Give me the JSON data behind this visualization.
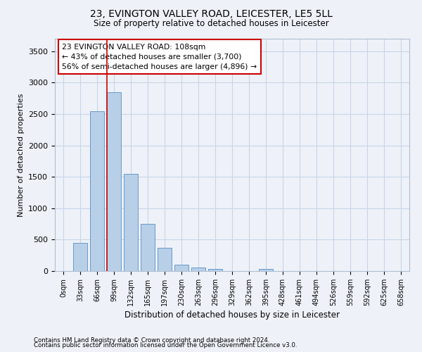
{
  "title1": "23, EVINGTON VALLEY ROAD, LEICESTER, LE5 5LL",
  "title2": "Size of property relative to detached houses in Leicester",
  "xlabel": "Distribution of detached houses by size in Leicester",
  "ylabel": "Number of detached properties",
  "categories": [
    "0sqm",
    "33sqm",
    "66sqm",
    "99sqm",
    "132sqm",
    "165sqm",
    "197sqm",
    "230sqm",
    "263sqm",
    "296sqm",
    "329sqm",
    "362sqm",
    "395sqm",
    "428sqm",
    "461sqm",
    "494sqm",
    "526sqm",
    "559sqm",
    "592sqm",
    "625sqm",
    "658sqm"
  ],
  "values": [
    5,
    450,
    2550,
    2850,
    1550,
    750,
    375,
    100,
    60,
    30,
    5,
    0,
    30,
    0,
    0,
    0,
    0,
    0,
    0,
    0,
    0
  ],
  "bar_color": "#b8cfe8",
  "bar_edge_color": "#6699cc",
  "grid_color": "#c8d4e8",
  "background_color": "#eef2f8",
  "vline_color": "#cc0000",
  "annotation_text": "23 EVINGTON VALLEY ROAD: 108sqm\n← 43% of detached houses are smaller (3,700)\n56% of semi-detached houses are larger (4,896) →",
  "annotation_box_color": "#ffffff",
  "annotation_box_edge": "#cc0000",
  "ylim": [
    0,
    3700
  ],
  "yticks": [
    0,
    500,
    1000,
    1500,
    2000,
    2500,
    3000,
    3500
  ],
  "footnote1": "Contains HM Land Registry data © Crown copyright and database right 2024.",
  "footnote2": "Contains public sector information licensed under the Open Government Licence v3.0."
}
